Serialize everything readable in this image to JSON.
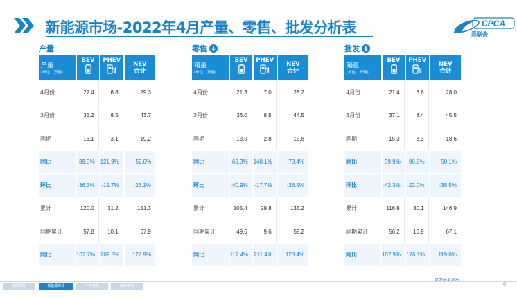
{
  "title": "新能源市场-2022年4月产量、零售、批发分析表",
  "logo": {
    "name": "CPCA",
    "sub": "乘联会"
  },
  "columns": {
    "bev": "BEV",
    "phev": "PHEV",
    "nev": "NEV",
    "nev_sub": "合计",
    "unit": "(单位：万辆)"
  },
  "panels": [
    {
      "title": "产量",
      "row_head": "产量",
      "rows": [
        {
          "label": "4月份",
          "bev": "22.4",
          "phev": "6.8",
          "nev": "29.3",
          "hl": false
        },
        {
          "label": "3月份",
          "bev": "35.2",
          "phev": "8.5",
          "nev": "43.7",
          "hl": false
        },
        {
          "label": "同期",
          "bev": "16.1",
          "phev": "3.1",
          "nev": "19.2",
          "hl": false
        },
        {
          "label": "同比",
          "bev": "39.3%",
          "phev": "121.9%",
          "nev": "52.6%",
          "hl": true
        },
        {
          "label": "环比",
          "bev": "-36.3%",
          "phev": "-19.7%",
          "nev": "-33.1%",
          "hl": true
        },
        {
          "label": "累计",
          "bev": "120.0",
          "phev": "31.2",
          "nev": "151.3",
          "hl": false
        },
        {
          "label": "同期累计",
          "bev": "57.8",
          "phev": "10.1",
          "nev": "67.9",
          "hl": false
        },
        {
          "label": "同比",
          "bev": "107.7%",
          "phev": "209.8%",
          "nev": "122.9%",
          "hl": true
        }
      ]
    },
    {
      "title": "零售",
      "row_head": "销量",
      "rows": [
        {
          "label": "4月份",
          "bev": "21.3",
          "phev": "7.0",
          "nev": "28.2",
          "hl": false
        },
        {
          "label": "3月份",
          "bev": "36.0",
          "phev": "8.5",
          "nev": "44.5",
          "hl": false
        },
        {
          "label": "同期",
          "bev": "13.0",
          "phev": "2.8",
          "nev": "15.8",
          "hl": false
        },
        {
          "label": "同比",
          "bev": "63.3%",
          "phev": "148.1%",
          "nev": "78.4%",
          "hl": true
        },
        {
          "label": "环比",
          "bev": "-40.9%",
          "phev": "-17.7%",
          "nev": "-36.5%",
          "hl": true
        },
        {
          "label": "累计",
          "bev": "105.4",
          "phev": "29.8",
          "nev": "135.2",
          "hl": false
        },
        {
          "label": "同期累计",
          "bev": "49.6",
          "phev": "9.6",
          "nev": "59.2",
          "hl": false
        },
        {
          "label": "同比",
          "bev": "112.4%",
          "phev": "211.4%",
          "nev": "128.4%",
          "hl": true
        }
      ]
    },
    {
      "title": "批发",
      "row_head": "销量",
      "rows": [
        {
          "label": "4月份",
          "bev": "21.4",
          "phev": "6.6",
          "nev": "28.0",
          "hl": false
        },
        {
          "label": "3月份",
          "bev": "37.1",
          "phev": "8.4",
          "nev": "45.5",
          "hl": false
        },
        {
          "label": "同期",
          "bev": "15.3",
          "phev": "3.3",
          "nev": "18.6",
          "hl": false
        },
        {
          "label": "同比",
          "bev": "39.9%",
          "phev": "96.8%",
          "nev": "50.1%",
          "hl": true
        },
        {
          "label": "环比",
          "bev": "-42.3%",
          "phev": "-22.0%",
          "nev": "-38.5%",
          "hl": true
        },
        {
          "label": "累计",
          "bev": "116.8",
          "phev": "30.1",
          "nev": "146.9",
          "hl": false
        },
        {
          "label": "同期累计",
          "bev": "56.2",
          "phev": "10.9",
          "nev": "67.1",
          "hl": false
        },
        {
          "label": "同比",
          "bev": "107.9%",
          "phev": "176.1%",
          "nev": "119.0%",
          "hl": true
        }
      ]
    }
  ],
  "footer": {
    "tabs": [
      {
        "label": "宏观市场",
        "active": false
      },
      {
        "label": "新能源市场",
        "active": true
      },
      {
        "label": "厂商格局",
        "active": false
      },
      {
        "label": "细分市场",
        "active": false
      }
    ],
    "slogan": "月度信息发布",
    "page": "6"
  },
  "colors": {
    "accent": "#1a82c8",
    "header": "#1a8dd6",
    "highlight_bg": "#eef5fc"
  }
}
